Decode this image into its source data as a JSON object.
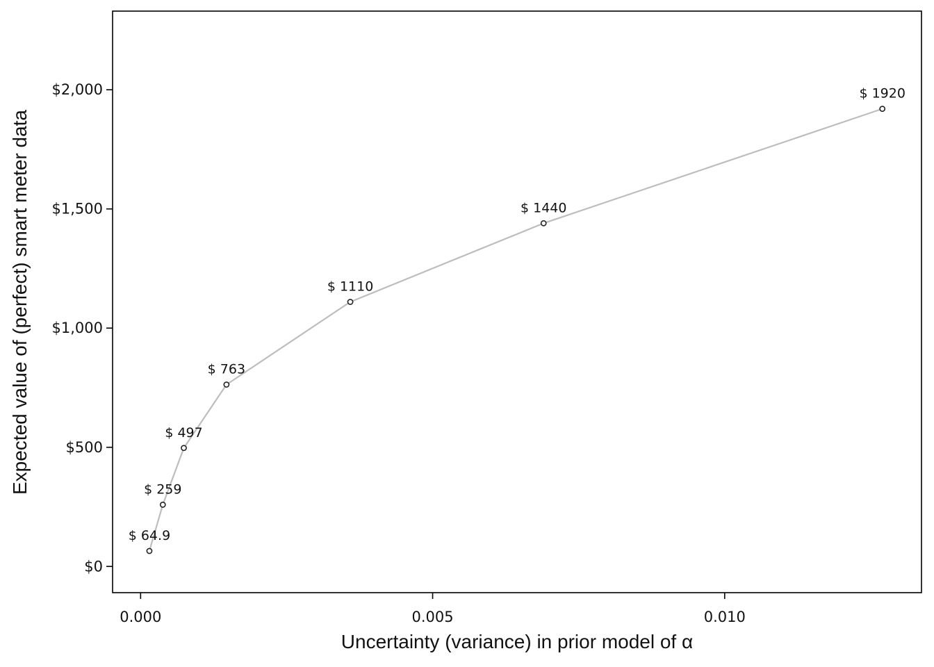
{
  "chart_data": {
    "type": "line",
    "xlabel": "Uncertainty (variance) in prior model of α",
    "ylabel": "Expected value of (perfect) smart meter data",
    "xlim": [
      -0.00048,
      0.01337
    ],
    "ylim": [
      -110,
      2330
    ],
    "x_ticks": [
      0.0,
      0.005,
      0.01
    ],
    "x_tick_labels": [
      "0.000",
      "0.005",
      "0.010"
    ],
    "y_ticks": [
      0,
      500,
      1000,
      1500,
      2000
    ],
    "y_tick_labels": [
      "$0",
      "$500",
      "$1,000",
      "$1,500",
      "$2,000"
    ],
    "grid": false,
    "series": [
      {
        "color": "#bdbdbd",
        "x": [
          0.00015,
          0.00038,
          0.00074,
          0.00147,
          0.00359,
          0.0069,
          0.0127
        ],
        "y": [
          64.9,
          259,
          497,
          763,
          1110,
          1440,
          1920
        ],
        "labels": [
          "$ 64.9",
          "$ 259",
          "$ 497",
          "$ 763",
          "$ 1110",
          "$ 1440",
          "$ 1920"
        ]
      }
    ]
  }
}
